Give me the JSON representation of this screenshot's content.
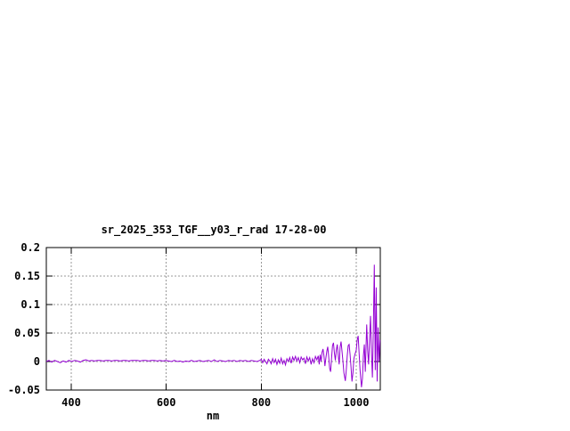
{
  "window": {
    "background": "#ffffff"
  },
  "chart_data": {
    "type": "line",
    "title": "sr_2025_353_TGF__y03_r_rad 17-28-00",
    "xlabel": "nm",
    "ylabel": "",
    "xlim": [
      347.5,
      1050.6
    ],
    "ylim": [
      -0.05,
      0.2
    ],
    "x_ticks": [
      400,
      600,
      800,
      1000
    ],
    "x_tick_labels": [
      "400",
      "600",
      "800",
      "1000"
    ],
    "y_ticks": [
      -0.05,
      0,
      0.05,
      0.1,
      0.15,
      0.2
    ],
    "y_tick_labels": [
      "-0.05",
      "0",
      "0.05",
      "0.1",
      "0.15",
      "0.2"
    ],
    "grid": true,
    "legend_position": "none",
    "colors": {
      "line": "#9400d3",
      "axis": "#000000",
      "grid": "#999999",
      "background": "#ffffff",
      "text": "#000000"
    },
    "series": [
      {
        "color": "#9400d3",
        "points": [
          [
            347.5,
            0.0
          ],
          [
            353,
            0.002
          ],
          [
            359,
            -0.001
          ],
          [
            365,
            0.002
          ],
          [
            371,
            0.0
          ],
          [
            377,
            -0.002
          ],
          [
            383,
            0.001
          ],
          [
            389,
            -0.001
          ],
          [
            395,
            0.002
          ],
          [
            401,
            0.0
          ],
          [
            407,
            0.002
          ],
          [
            413,
            0.001
          ],
          [
            419,
            -0.001
          ],
          [
            425,
            0.002
          ],
          [
            431,
            0.003
          ],
          [
            437,
            0.001
          ],
          [
            443,
            0.002
          ],
          [
            449,
            0.001
          ],
          [
            455,
            0.002
          ],
          [
            461,
            0.002
          ],
          [
            467,
            0.001
          ],
          [
            473,
            0.002
          ],
          [
            479,
            0.002
          ],
          [
            485,
            0.001
          ],
          [
            491,
            0.002
          ],
          [
            497,
            0.002
          ],
          [
            503,
            0.001
          ],
          [
            509,
            0.002
          ],
          [
            515,
            0.002
          ],
          [
            521,
            0.001
          ],
          [
            527,
            0.002
          ],
          [
            533,
            0.002
          ],
          [
            539,
            0.002
          ],
          [
            545,
            0.001
          ],
          [
            551,
            0.002
          ],
          [
            557,
            0.002
          ],
          [
            563,
            0.001
          ],
          [
            569,
            0.002
          ],
          [
            575,
            0.002
          ],
          [
            581,
            0.001
          ],
          [
            587,
            0.002
          ],
          [
            593,
            0.001
          ],
          [
            599,
            0.002
          ],
          [
            605,
            0.001
          ],
          [
            611,
            0.0
          ],
          [
            617,
            0.002
          ],
          [
            623,
            0.0
          ],
          [
            629,
            0.001
          ],
          [
            635,
            -0.001
          ],
          [
            641,
            0.001
          ],
          [
            647,
            0.0
          ],
          [
            653,
            0.002
          ],
          [
            659,
            0.0
          ],
          [
            665,
            0.001
          ],
          [
            671,
            0.002
          ],
          [
            677,
            0.0
          ],
          [
            683,
            0.001
          ],
          [
            689,
            0.002
          ],
          [
            695,
            0.0
          ],
          [
            701,
            0.003
          ],
          [
            707,
            0.0
          ],
          [
            713,
            0.002
          ],
          [
            719,
            0.001
          ],
          [
            725,
            0.0
          ],
          [
            731,
            0.002
          ],
          [
            737,
            0.001
          ],
          [
            743,
            0.002
          ],
          [
            749,
            0.0
          ],
          [
            755,
            0.002
          ],
          [
            761,
            0.001
          ],
          [
            767,
            0.002
          ],
          [
            773,
            0.0
          ],
          [
            779,
            0.002
          ],
          [
            785,
            0.001
          ],
          [
            791,
            0.0
          ],
          [
            797,
            0.002
          ],
          [
            800,
            0.004
          ],
          [
            803,
            -0.002
          ],
          [
            806,
            0.004
          ],
          [
            809,
            0.0
          ],
          [
            812,
            -0.004
          ],
          [
            815,
            0.004
          ],
          [
            818,
            0.001
          ],
          [
            821,
            -0.004
          ],
          [
            824,
            0.005
          ],
          [
            827,
            -0.002
          ],
          [
            830,
            0.004
          ],
          [
            833,
            -0.005
          ],
          [
            836,
            0.003
          ],
          [
            839,
            -0.003
          ],
          [
            842,
            0.006
          ],
          [
            845,
            -0.004
          ],
          [
            848,
            0.002
          ],
          [
            851,
            -0.006
          ],
          [
            854,
            0.005
          ],
          [
            857,
            0.0
          ],
          [
            860,
            0.007
          ],
          [
            863,
            -0.003
          ],
          [
            866,
            0.008
          ],
          [
            869,
            0.002
          ],
          [
            872,
            0.009
          ],
          [
            875,
            0.001
          ],
          [
            878,
            0.007
          ],
          [
            881,
            -0.002
          ],
          [
            884,
            0.008
          ],
          [
            887,
            0.003
          ],
          [
            890,
            0.006
          ],
          [
            893,
            -0.004
          ],
          [
            896,
            0.008
          ],
          [
            899,
            0.001
          ],
          [
            902,
            0.007
          ],
          [
            905,
            -0.005
          ],
          [
            908,
            0.005
          ],
          [
            911,
            -0.002
          ],
          [
            914,
            0.009
          ],
          [
            917,
            0.003
          ],
          [
            920,
            0.01
          ],
          [
            922,
            -0.005
          ],
          [
            924,
            0.012
          ],
          [
            926,
            0.0
          ],
          [
            928,
            0.016
          ],
          [
            930,
            0.022
          ],
          [
            932,
            0.01
          ],
          [
            934,
            -0.008
          ],
          [
            936,
            0.006
          ],
          [
            938,
            0.018
          ],
          [
            940,
            0.026
          ],
          [
            942,
            0.008
          ],
          [
            944,
            -0.012
          ],
          [
            946,
            -0.018
          ],
          [
            948,
            0.006
          ],
          [
            950,
            0.028
          ],
          [
            952,
            0.033
          ],
          [
            954,
            0.015
          ],
          [
            956,
            0.002
          ],
          [
            958,
            0.02
          ],
          [
            960,
            0.03
          ],
          [
            962,
            0.012
          ],
          [
            964,
            -0.005
          ],
          [
            966,
            0.025
          ],
          [
            968,
            0.035
          ],
          [
            970,
            0.018
          ],
          [
            972,
            0.0
          ],
          [
            974,
            -0.02
          ],
          [
            977,
            -0.034
          ],
          [
            979,
            -0.015
          ],
          [
            981,
            0.01
          ],
          [
            983,
            0.028
          ],
          [
            985,
            0.03
          ],
          [
            987,
            0.012
          ],
          [
            989,
            -0.01
          ],
          [
            991,
            -0.035
          ],
          [
            993,
            -0.02
          ],
          [
            995,
            0.005
          ],
          [
            997,
            0.012
          ],
          [
            1000,
            0.02
          ],
          [
            1002,
            0.038
          ],
          [
            1004,
            0.045
          ],
          [
            1006,
            0.015
          ],
          [
            1008,
            -0.015
          ],
          [
            1011,
            -0.045
          ],
          [
            1013,
            -0.03
          ],
          [
            1015,
            0.01
          ],
          [
            1017,
            0.03
          ],
          [
            1019,
            -0.018
          ],
          [
            1022,
            0.065
          ],
          [
            1024,
            0.02
          ],
          [
            1026,
            -0.005
          ],
          [
            1028,
            0.04
          ],
          [
            1030,
            0.08
          ],
          [
            1032,
            0.015
          ],
          [
            1034,
            -0.028
          ],
          [
            1036,
            0.06
          ],
          [
            1038,
            0.17
          ],
          [
            1040,
            -0.015
          ],
          [
            1042,
            0.13
          ],
          [
            1044,
            -0.035
          ],
          [
            1046,
            0.06
          ],
          [
            1048,
            0.0
          ],
          [
            1050,
            0.038
          ]
        ]
      }
    ]
  }
}
